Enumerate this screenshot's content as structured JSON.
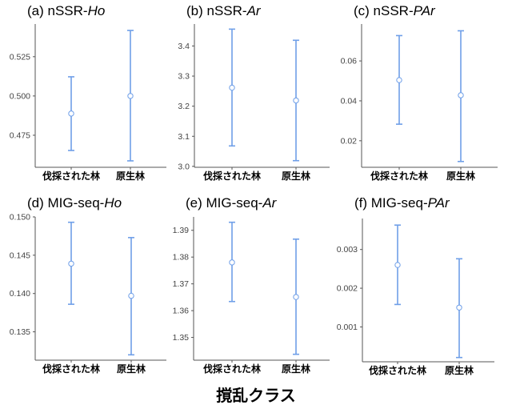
{
  "chart_data": [
    {
      "type": "errorbar",
      "title": "(a) nSSR-",
      "title_italic": "Ho",
      "categories": [
        "伐採された林",
        "原生林"
      ],
      "mean": [
        0.4888,
        0.5
      ],
      "lower": [
        0.4653,
        0.4587
      ],
      "upper": [
        0.5122,
        0.5417
      ],
      "yticks": [
        0.475,
        0.5,
        0.525
      ],
      "ytick_labels": [
        "0.475",
        "0.500",
        "0.525"
      ],
      "ylim": [
        0.4546,
        0.5458
      ]
    },
    {
      "type": "errorbar",
      "title": "(b) nSSR-",
      "title_italic": "Ar",
      "categories": [
        "伐採された林",
        "原生林"
      ],
      "mean": [
        3.2615,
        3.219
      ],
      "lower": [
        3.068,
        3.019
      ],
      "upper": [
        3.456,
        3.419
      ],
      "yticks": [
        3.0,
        3.1,
        3.2,
        3.3,
        3.4
      ],
      "ytick_labels": [
        "3.0",
        "3.1",
        "3.2",
        "3.3",
        "3.4"
      ],
      "ylim": [
        2.997,
        3.473
      ]
    },
    {
      "type": "errorbar",
      "title": "(c) nSSR-",
      "title_italic": "PAr",
      "categories": [
        "伐採された林",
        "原生林"
      ],
      "mean": [
        0.0504,
        0.0428
      ],
      "lower": [
        0.0283,
        0.0096
      ],
      "upper": [
        0.0727,
        0.0751
      ],
      "yticks": [
        0.02,
        0.04,
        0.06
      ],
      "ytick_labels": [
        "0.02",
        "0.04",
        "0.06"
      ],
      "ylim": [
        0.0067,
        0.0785
      ]
    },
    {
      "type": "errorbar",
      "title": "(d) MIG-seq-",
      "title_italic": "Ho",
      "categories": [
        "伐採された林",
        "原生林"
      ],
      "mean": [
        0.1439,
        0.1397
      ],
      "lower": [
        0.1386,
        0.132
      ],
      "upper": [
        0.1493,
        0.1473
      ],
      "yticks": [
        0.135,
        0.14,
        0.145,
        0.15
      ],
      "ytick_labels": [
        "0.135",
        "0.140",
        "0.145",
        "0.150"
      ],
      "ylim": [
        0.1313,
        0.15
      ]
    },
    {
      "type": "errorbar",
      "title": "(e) MIG-seq-",
      "title_italic": "Ar",
      "categories": [
        "伐採された林",
        "原生林"
      ],
      "mean": [
        1.378,
        1.3651
      ],
      "lower": [
        1.3634,
        1.3437
      ],
      "upper": [
        1.393,
        1.3867
      ],
      "yticks": [
        1.35,
        1.36,
        1.37,
        1.38,
        1.39
      ],
      "ytick_labels": [
        "1.35",
        "1.36",
        "1.37",
        "1.38",
        "1.39"
      ],
      "ylim": [
        1.3415,
        1.395
      ]
    },
    {
      "type": "errorbar",
      "title": "(f) MIG-seq-",
      "title_italic": "PAr",
      "categories": [
        "伐採された林",
        "原生林"
      ],
      "mean": [
        0.0026,
        0.0015
      ],
      "lower": [
        0.00158,
        0.00021
      ],
      "upper": [
        0.00363,
        0.00276
      ],
      "yticks": [
        0.001,
        0.002,
        0.003
      ],
      "ytick_labels": [
        "0.001",
        "0.002",
        "0.003"
      ],
      "ylim": [
        0.0001,
        0.0038
      ]
    }
  ],
  "xlabel": "撹乱クラス",
  "colors": {
    "errorbar": "#6f9fe8",
    "axis": "#555555"
  }
}
